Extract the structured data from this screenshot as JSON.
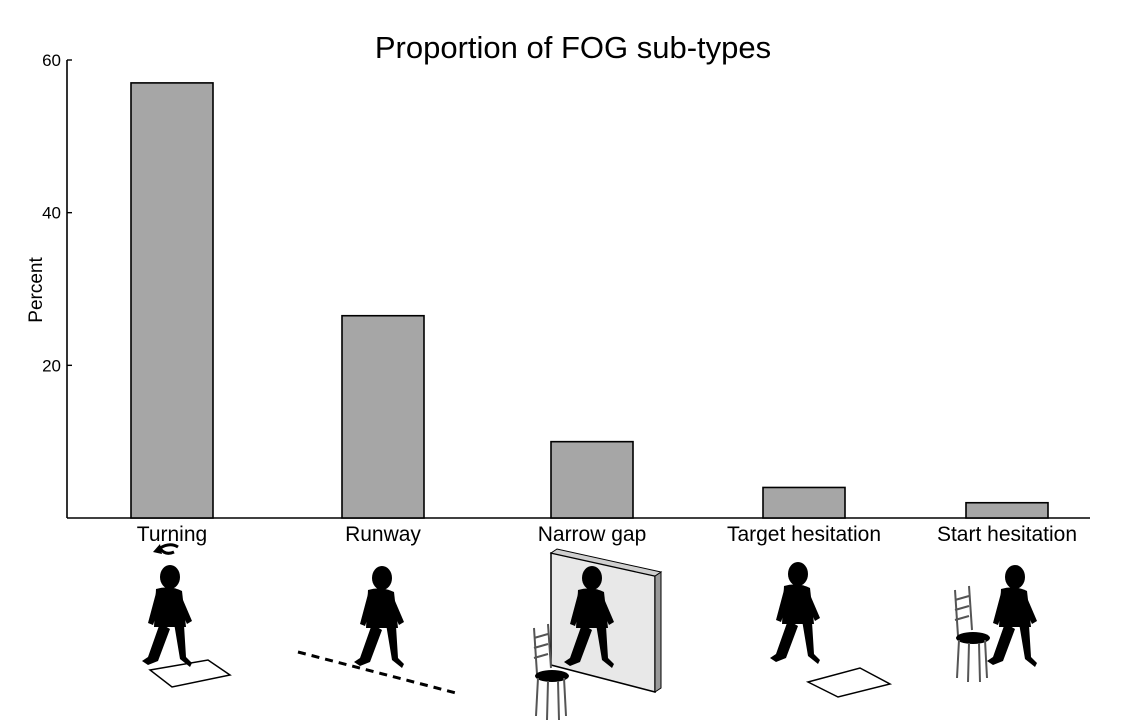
{
  "chart_data": {
    "type": "bar",
    "title": "Proportion of FOG sub-types",
    "ylabel": "Percent",
    "xlabel": "",
    "ylim": [
      0,
      60
    ],
    "yticks": [
      20,
      40,
      60
    ],
    "grid": false,
    "categories": [
      "Turning",
      "Runway",
      "Narrow gap",
      "Target hesitation",
      "Start hesitation"
    ],
    "values": [
      57,
      26.5,
      10,
      4,
      2
    ],
    "bar_color": "#a6a6a6",
    "icons": [
      "turning-walker-icon",
      "runway-walker-icon",
      "narrow-gap-walker-icon",
      "target-hesitation-walker-icon",
      "start-hesitation-walker-icon"
    ]
  }
}
